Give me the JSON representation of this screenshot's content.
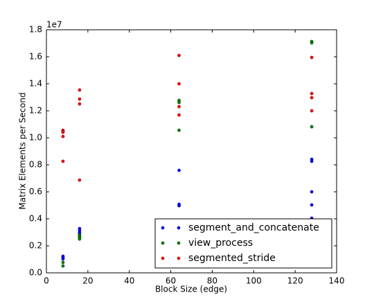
{
  "chart_data": {
    "type": "scatter",
    "xlabel": "Block Size (edge)",
    "ylabel": "Matrix Elements per Second",
    "y_offset_label": "1e7",
    "xlim": [
      0,
      140
    ],
    "xticks": [
      0,
      20,
      40,
      60,
      80,
      100,
      120,
      140
    ],
    "ylim": [
      0,
      1.8
    ],
    "yticks": [
      {
        "value": 0,
        "label": "0.0"
      },
      0.2,
      0.4,
      0.6,
      0.8,
      {
        "value": 1,
        "label": "1.0"
      },
      1.2,
      1.4,
      1.6,
      1.8
    ],
    "legend": "lower right",
    "series": [
      {
        "name": "segment_and_concatenate",
        "color": "#0000ff",
        "x": [
          8,
          8,
          8,
          16,
          16,
          16,
          16,
          64,
          64,
          64,
          128,
          128,
          128,
          128,
          128,
          128
        ],
        "values": [
          0.123,
          0.113,
          0.103,
          0.328,
          0.313,
          0.297,
          0.282,
          0.759,
          0.508,
          0.497,
          0.841,
          0.826,
          0.6,
          0.503,
          0.405,
          0.395
        ]
      },
      {
        "name": "view_process",
        "color": "#008000",
        "x": [
          8,
          8,
          16,
          16,
          16,
          16,
          64,
          64,
          64,
          128,
          128,
          128
        ],
        "values": [
          0.077,
          0.051,
          0.28,
          0.27,
          0.26,
          0.25,
          1.277,
          1.262,
          1.056,
          1.713,
          1.703,
          1.082
        ]
      },
      {
        "name": "segmented_stride",
        "color": "#ff0000",
        "x": [
          8,
          8,
          8,
          8,
          8,
          16,
          16,
          16,
          16,
          64,
          64,
          64,
          64,
          128,
          128,
          128,
          128
        ],
        "values": [
          1.056,
          1.046,
          1.041,
          1.01,
          0.826,
          1.354,
          1.287,
          1.251,
          0.687,
          1.61,
          1.4,
          1.231,
          1.169,
          1.595,
          1.328,
          1.297,
          1.2
        ]
      }
    ]
  }
}
